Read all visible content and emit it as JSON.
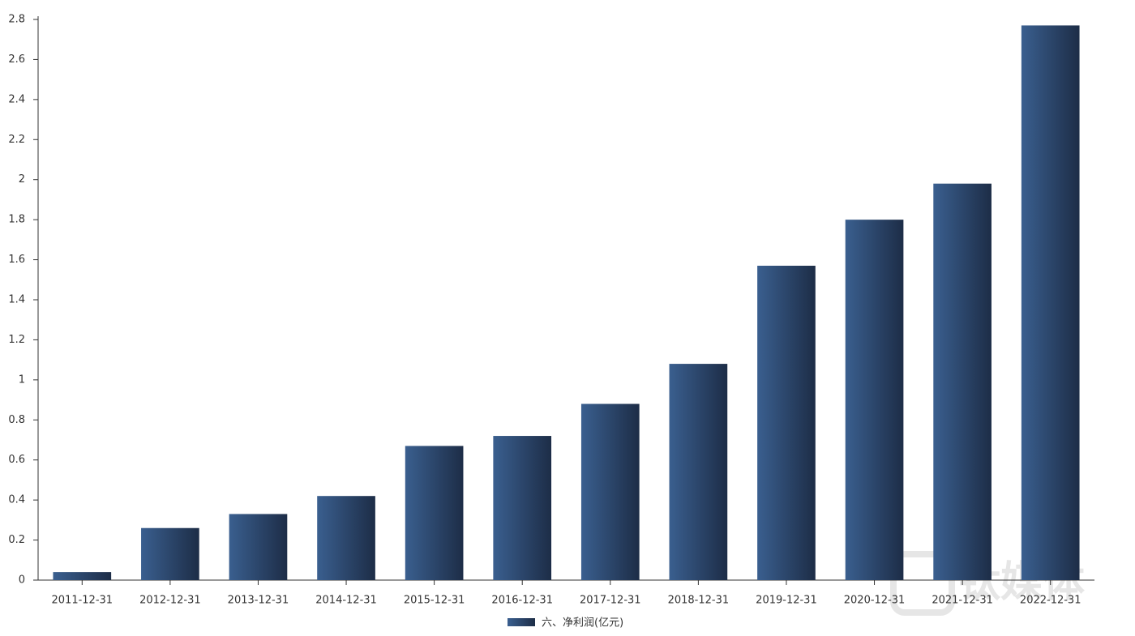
{
  "chart_data": {
    "type": "bar",
    "categories": [
      "2011-12-31",
      "2012-12-31",
      "2013-12-31",
      "2014-12-31",
      "2015-12-31",
      "2016-12-31",
      "2017-12-31",
      "2018-12-31",
      "2019-12-31",
      "2020-12-31",
      "2021-12-31",
      "2022-12-31"
    ],
    "series": [
      {
        "name": "六、净利润(亿元)",
        "color": "#2b4670",
        "values": [
          0.04,
          0.26,
          0.33,
          0.42,
          0.67,
          0.72,
          0.88,
          1.08,
          1.57,
          1.8,
          1.98,
          2.77
        ]
      }
    ],
    "ylim": [
      0,
      2.8
    ],
    "yticks": [
      0,
      0.2,
      0.4,
      0.6,
      0.8,
      1,
      1.2,
      1.4,
      1.6,
      1.8,
      2,
      2.2,
      2.4,
      2.6,
      2.8
    ],
    "grid": false,
    "legend": "bottom",
    "watermark": "钛媒体"
  }
}
